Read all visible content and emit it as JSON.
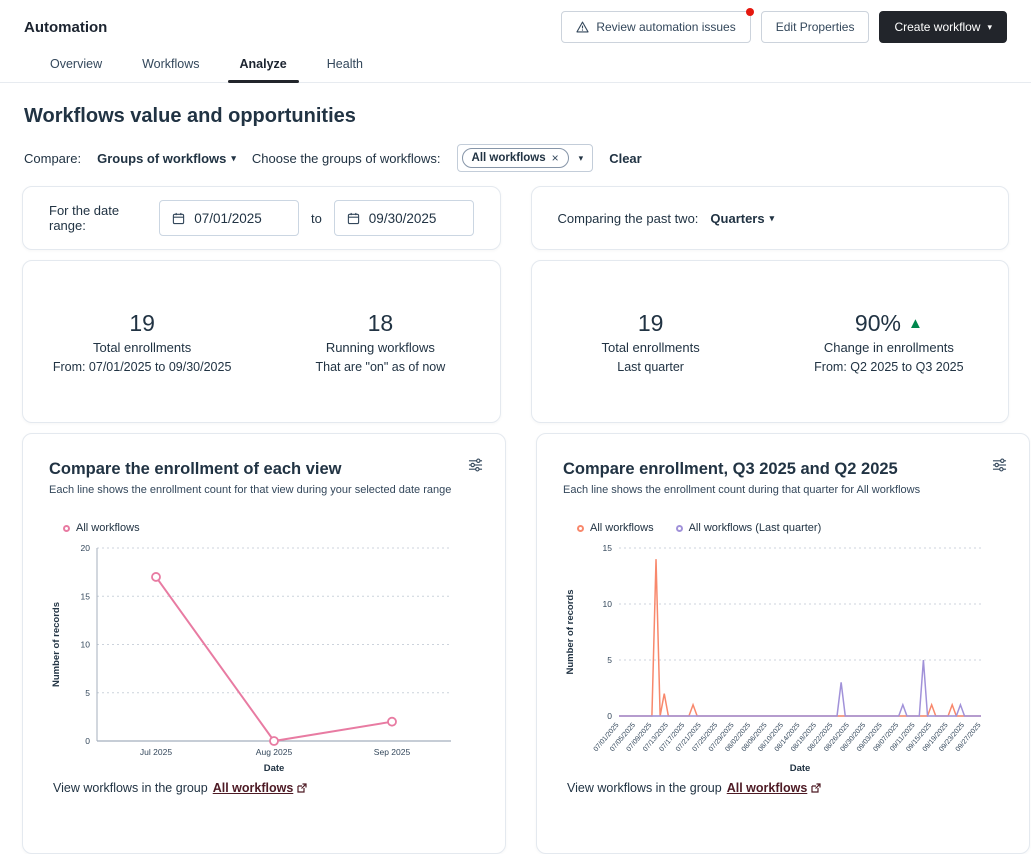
{
  "header": {
    "title": "Automation",
    "buttons": {
      "review": "Review automation issues",
      "edit_properties": "Edit Properties",
      "create_workflow": "Create workflow"
    },
    "tabs": [
      {
        "label": "Overview",
        "active": false
      },
      {
        "label": "Workflows",
        "active": false
      },
      {
        "label": "Analyze",
        "active": true
      },
      {
        "label": "Health",
        "active": false
      }
    ]
  },
  "page": {
    "heading": "Workflows value and opportunities"
  },
  "filters": {
    "compare_label": "Compare:",
    "compare_value": "Groups of workflows",
    "choose_label": "Choose the groups of workflows:",
    "selected_pill": "All workflows",
    "clear_label": "Clear",
    "date_range": {
      "label": "For the date range:",
      "from": "07/01/2025",
      "to_word": "to",
      "to": "09/30/2025"
    },
    "comparing": {
      "label": "Comparing the past two:",
      "value": "Quarters"
    }
  },
  "summary_left": {
    "stats": [
      {
        "value": "19",
        "label": "Total enrollments",
        "sub": "From: 07/01/2025 to 09/30/2025"
      },
      {
        "value": "18",
        "label": "Running workflows",
        "sub": "That are \"on\" as of now"
      }
    ]
  },
  "summary_right": {
    "stats": [
      {
        "value": "19",
        "label": "Total enrollments",
        "sub": "Last quarter"
      },
      {
        "value": "90%",
        "label": "Change in enrollments",
        "sub": "From: Q2 2025 to Q3 2025",
        "trend": "up",
        "trend_color": "#00874d"
      }
    ]
  },
  "chart_data": [
    {
      "type": "line",
      "title": "Compare the enrollment of each view",
      "subtitle": "Each line shows the enrollment count for that view during your selected date range",
      "xlabel": "Date",
      "ylabel": "Number of records",
      "ylim": [
        0,
        20
      ],
      "yticks": [
        0,
        5,
        10,
        15,
        20
      ],
      "grid": "dotted-horizontal",
      "legend_position": "top-left",
      "categories": [
        "Jul 2025",
        "Aug 2025",
        "Sep 2025"
      ],
      "series": [
        {
          "name": "All workflows",
          "color": "#e87ba2",
          "values": [
            17,
            0,
            2
          ],
          "markers": true
        }
      ],
      "footer_link": {
        "prefix": "View workflows in the group",
        "link_text": "All workflows"
      }
    },
    {
      "type": "line",
      "title": "Compare enrollment, Q3 2025 and Q2 2025",
      "subtitle": "Each line shows the enrollment count during that quarter for All workflows",
      "xlabel": "Date",
      "ylabel": "Number of records",
      "ylim": [
        0,
        15
      ],
      "yticks": [
        0,
        5,
        10,
        15
      ],
      "grid": "dotted-horizontal",
      "legend_position": "top-left",
      "x_start": "07/01/2025",
      "x_end": "09/27/2025",
      "xticks": [
        "07/01/2025",
        "07/05/2025",
        "07/09/2025",
        "07/13/2025",
        "07/17/2025",
        "07/21/2025",
        "07/25/2025",
        "07/29/2025",
        "08/02/2025",
        "08/06/2025",
        "08/10/2025",
        "08/14/2025",
        "08/18/2025",
        "08/22/2025",
        "08/26/2025",
        "08/30/2025",
        "09/03/2025",
        "09/07/2025",
        "09/11/2025",
        "09/15/2025",
        "09/19/2025",
        "09/23/2025",
        "09/27/2025"
      ],
      "series": [
        {
          "name": "All workflows",
          "color": "#f8886c",
          "baseline": 0,
          "spikes": {
            "07/10/2025": 14,
            "07/12/2025": 2,
            "07/19/2025": 1,
            "09/15/2025": 1,
            "09/20/2025": 1
          }
        },
        {
          "name": "All workflows (Last quarter)",
          "color": "#a192d9",
          "baseline": 0,
          "spikes": {
            "08/24/2025": 3,
            "09/08/2025": 1,
            "09/13/2025": 5,
            "09/22/2025": 1
          }
        }
      ],
      "footer_link": {
        "prefix": "View workflows in the group",
        "link_text": "All workflows"
      }
    }
  ]
}
